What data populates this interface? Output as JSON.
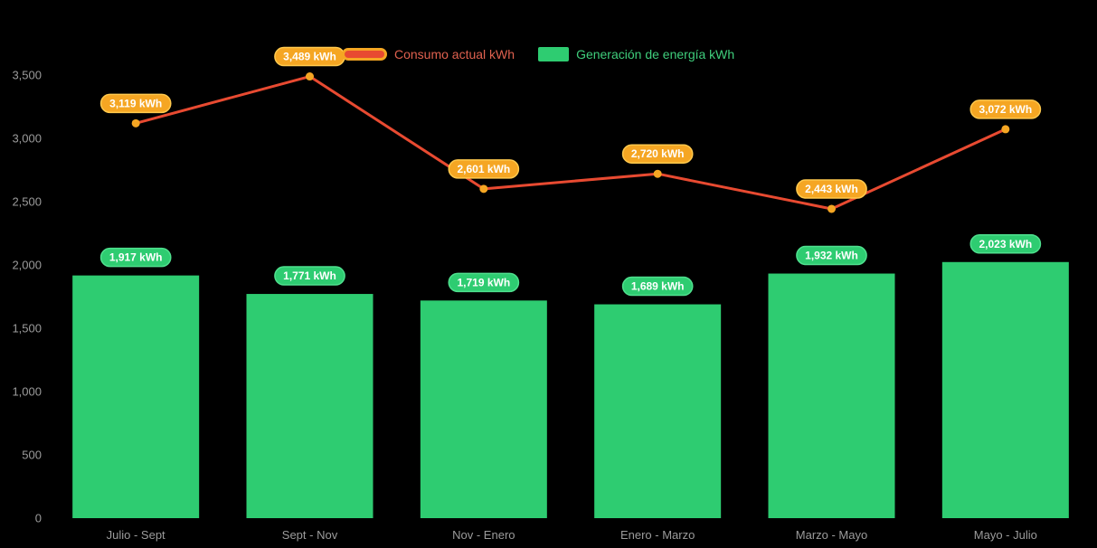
{
  "background": "#000000",
  "legend": {
    "position": "top-center",
    "items": [
      {
        "label": "Consumo actual kWh",
        "marker": "line-swatch",
        "text_color": "#E0614F"
      },
      {
        "label": "Generación de energía kWh",
        "marker": "square-swatch",
        "text_color": "#3FCE7C"
      }
    ]
  },
  "chart_data": {
    "type": "combo (line + bar)",
    "title": "",
    "categories": [
      "Julio - Sept",
      "Sept - Nov",
      "Nov - Enero",
      "Enero - Marzo",
      "Marzo - Mayo",
      "Mayo - Julio"
    ],
    "series": [
      {
        "name": "Consumo actual kWh",
        "type": "line",
        "color": "#E84A31",
        "marker_color": "#F5A623",
        "label_bg": "#F5A623",
        "label_border": "#FFC94D",
        "values": [
          3119,
          3489,
          2601,
          2720,
          2443,
          3072
        ],
        "labels": [
          "3,119 kWh",
          "3,489 kWh",
          "2,601 kWh",
          "2,720 kWh",
          "2,443 kWh",
          "3,072 kWh"
        ]
      },
      {
        "name": "Generación de energía kWh",
        "type": "bar",
        "color": "#2ECC71",
        "label_bg": "#2ECC71",
        "label_border": "#4FE08E",
        "values": [
          1917,
          1771,
          1719,
          1689,
          1932,
          2023
        ],
        "labels": [
          "1,917 kWh",
          "1,771 kWh",
          "1,719 kWh",
          "1,689 kWh",
          "1,932 kWh",
          "2,023 kWh"
        ]
      }
    ],
    "y_axis": {
      "min": 0,
      "max": 3500,
      "tick_interval": 500,
      "tick_labels": [
        "0",
        "500",
        "1,000",
        "1,500",
        "2,000",
        "2,500",
        "3,000",
        "3,500"
      ],
      "text_color": "#9B9B9B"
    },
    "x_axis": {
      "text_color": "#9B9B9B"
    },
    "grid": false,
    "legend_position": "top-center",
    "label_text_color": "#FFFFFF"
  }
}
